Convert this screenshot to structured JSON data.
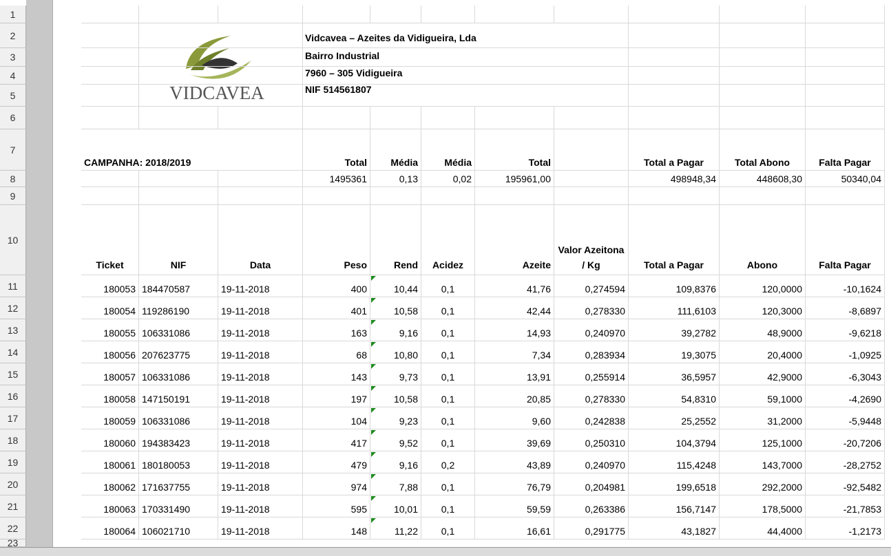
{
  "company": {
    "name": "Vidcavea – Azeites da Vidigueira, Lda",
    "address1": "Bairro Industrial",
    "address2": "7960 – 305 Vidigueira",
    "nif": "NIF 514561807"
  },
  "logo_text": "VIDCAVEA",
  "row_numbers": [
    1,
    2,
    3,
    4,
    5,
    6,
    7,
    8,
    9,
    10,
    11,
    12,
    13,
    14,
    15,
    16,
    17,
    18,
    19,
    20,
    21,
    22,
    23
  ],
  "campaign": "CAMPANHA: 2018/2019",
  "summary_headers": [
    "Total",
    "Média",
    "Média",
    "Total",
    "Total a Pagar",
    "Total Abono",
    "Falta Pagar"
  ],
  "summary_values": [
    "1495361",
    "0,13",
    "0,02",
    "195961,00",
    "498948,34",
    "448608,30",
    "50340,04"
  ],
  "table": {
    "headers": [
      "Ticket",
      "NIF",
      "Data",
      "Peso",
      "Rend",
      "Acidez",
      "Azeite",
      "Valor Azeitona / Kg",
      "Total a Pagar",
      "Abono",
      "Falta Pagar"
    ],
    "rows": [
      [
        "180053",
        "184470587",
        "19-11-2018",
        "400",
        "10,44",
        "0,1",
        "41,76",
        "0,274594",
        "109,8376",
        "120,0000",
        "-10,1624"
      ],
      [
        "180054",
        "119286190",
        "19-11-2018",
        "401",
        "10,58",
        "0,1",
        "42,44",
        "0,278330",
        "111,6103",
        "120,3000",
        "-8,6897"
      ],
      [
        "180055",
        "106331086",
        "19-11-2018",
        "163",
        "9,16",
        "0,1",
        "14,93",
        "0,240970",
        "39,2782",
        "48,9000",
        "-9,6218"
      ],
      [
        "180056",
        "207623775",
        "19-11-2018",
        "68",
        "10,80",
        "0,1",
        "7,34",
        "0,283934",
        "19,3075",
        "20,4000",
        "-1,0925"
      ],
      [
        "180057",
        "106331086",
        "19-11-2018",
        "143",
        "9,73",
        "0,1",
        "13,91",
        "0,255914",
        "36,5957",
        "42,9000",
        "-6,3043"
      ],
      [
        "180058",
        "147150191",
        "19-11-2018",
        "197",
        "10,58",
        "0,1",
        "20,85",
        "0,278330",
        "54,8310",
        "59,1000",
        "-4,2690"
      ],
      [
        "180059",
        "106331086",
        "19-11-2018",
        "104",
        "9,23",
        "0,1",
        "9,60",
        "0,242838",
        "25,2552",
        "31,2000",
        "-5,9448"
      ],
      [
        "180060",
        "194383423",
        "19-11-2018",
        "417",
        "9,52",
        "0,1",
        "39,69",
        "0,250310",
        "104,3794",
        "125,1000",
        "-20,7206"
      ],
      [
        "180061",
        "180180053",
        "19-11-2018",
        "479",
        "9,16",
        "0,2",
        "43,89",
        "0,240970",
        "115,4248",
        "143,7000",
        "-28,2752"
      ],
      [
        "180062",
        "171637755",
        "19-11-2018",
        "974",
        "7,88",
        "0,1",
        "76,79",
        "0,204981",
        "199,6518",
        "292,2000",
        "-92,5482"
      ],
      [
        "180063",
        "170331490",
        "19-11-2018",
        "595",
        "10,01",
        "0,1",
        "59,59",
        "0,263386",
        "156,7147",
        "178,5000",
        "-21,7853"
      ],
      [
        "180064",
        "106021710",
        "19-11-2018",
        "148",
        "11,22",
        "0,1",
        "16,61",
        "0,291775",
        "43,1827",
        "44,4000",
        "-1,2173"
      ]
    ]
  }
}
